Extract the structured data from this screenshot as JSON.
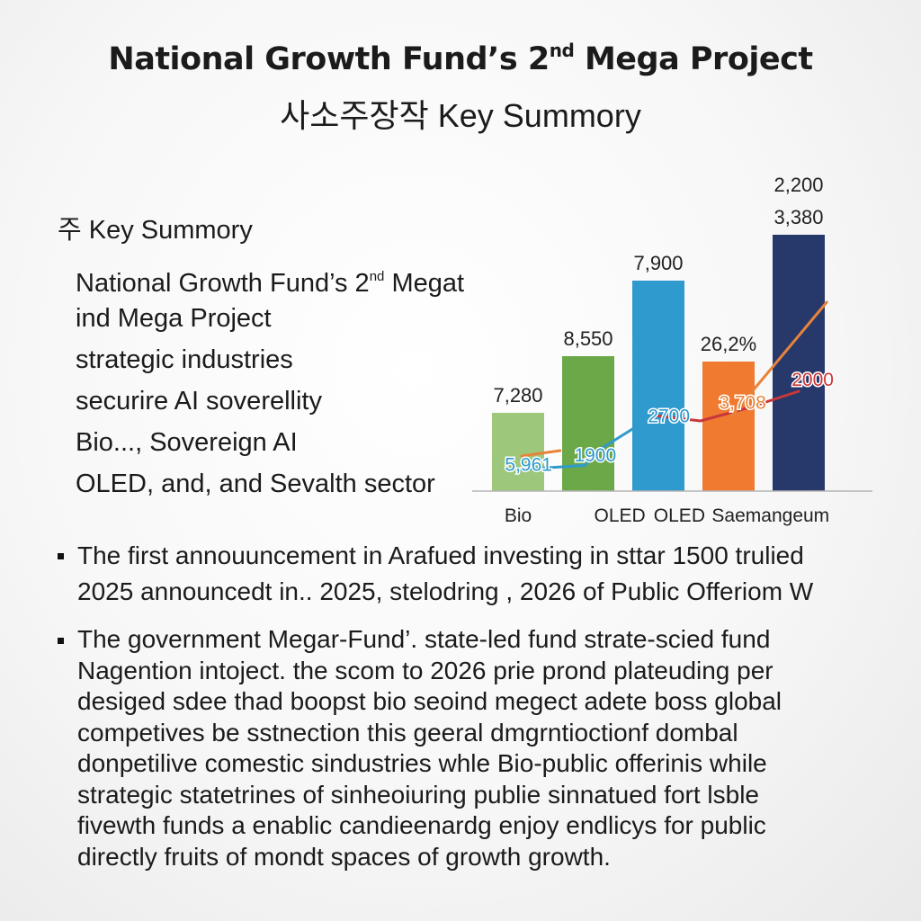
{
  "header": {
    "title": "National Growth Fund’s 2",
    "title_sup": "nd",
    "title_end": " Mega Project",
    "subtitle": "사소주장작 Key Summory"
  },
  "summary": {
    "heading": "주 Key Summory",
    "line1_a": "National Growth Fund’s 2",
    "line1_sup": "nd",
    "line1_b": " Megat",
    "lines": [
      "ind Mega Project",
      "strategic industries",
      "securire AI soverellity",
      "Bio..., Sovereign AI",
      "OLED, and, and Sevalth sector"
    ]
  },
  "bullets": [
    {
      "lines": [
        "The first annouuncement in Arafued investing in sttar 1500 trulied",
        "2025 announcedt in.. 2025, stelodring , 2026 of Public Offeriom W"
      ]
    },
    {
      "lines": [
        "The government Megar-Fund’. state-led fund strate-scied fund",
        "Nagention intoject. the scom to 2026 prie prond plateuding per",
        "desiged sdee thad boopst bio seoind megect   adete boss global",
        "competives be sstnection this geeral dmgrntioctionf dombal",
        "donpetilive comestic sindustries whle Bio-public offerinis while",
        "strategic statetrines of sinheoiuring publie sinnatued fort lsble",
        "fivewth funds a enablic candieenardg enjoy endlicys for public",
        "directly fruits of mondt spaces of growth growth."
      ]
    }
  ],
  "chart_data": {
    "type": "bar",
    "categories": [
      "Bio",
      "OLED",
      "OLED",
      "Saemangeum"
    ],
    "bars": [
      {
        "category": "Bio",
        "height_value": 2.9,
        "label": "7,280",
        "color": "#9dc77a"
      },
      {
        "category": "OLED",
        "height_value": 5.0,
        "label": "8,550",
        "color": "#6ba847"
      },
      {
        "category": "OLED",
        "height_value": 7.8,
        "label": "7,900",
        "color": "#2f9acd"
      },
      {
        "category": "Saemangeum",
        "height_value": 4.8,
        "label": "26,2%",
        "color": "#ef7a30"
      },
      {
        "category": "",
        "height_value": 9.5,
        "label_top": "2,200",
        "label": "3,380",
        "color": "#27386b"
      }
    ],
    "bar_value_scale_max": 10,
    "lines": [
      {
        "color": "#e8843a",
        "points": [
          [
            0.05,
            1.3
          ],
          [
            0.6,
            1.5
          ]
        ]
      },
      {
        "color": "#2f9acd",
        "points": [
          [
            0.0,
            0.8
          ],
          [
            0.95,
            0.95
          ],
          [
            1.2,
            1.6
          ],
          [
            2.0,
            2.9
          ]
        ]
      },
      {
        "color": "#c8373a",
        "points": [
          [
            1.95,
            2.8
          ],
          [
            2.6,
            2.6
          ],
          [
            3.3,
            3.1
          ],
          [
            4.0,
            3.7
          ]
        ]
      },
      {
        "color": "#e8843a",
        "points": [
          [
            3.05,
            2.8
          ],
          [
            4.4,
            7.0
          ]
        ]
      }
    ],
    "inline_labels": [
      {
        "text": "5,961",
        "color": "#2f9acd",
        "at": [
          0.15,
          0.75
        ]
      },
      {
        "text": "1900",
        "color": "#2f9acd",
        "at": [
          1.1,
          1.1
        ]
      },
      {
        "text": "2700",
        "color": "#2f9acd",
        "at": [
          2.15,
          2.55
        ]
      },
      {
        "text": "3,708",
        "color": "#e8843a",
        "at": [
          3.2,
          3.05
        ]
      },
      {
        "text": "2000",
        "color": "#c8373a",
        "at": [
          4.2,
          3.9
        ]
      }
    ],
    "grid": false,
    "legend": "none"
  }
}
